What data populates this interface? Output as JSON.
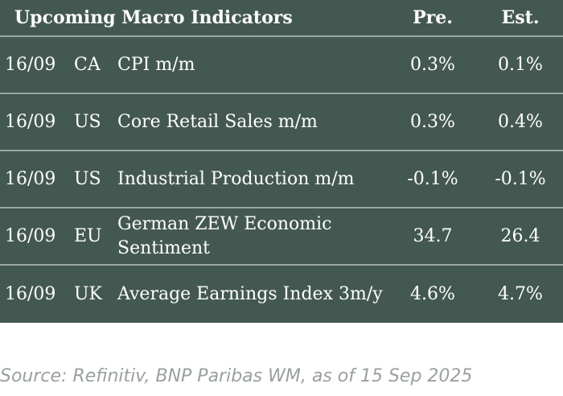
{
  "header": {
    "title": "Upcoming Macro Indicators",
    "col_pre": "Pre.",
    "col_est": "Est."
  },
  "rows": [
    {
      "date": "16/09",
      "country": "CA",
      "indicator": "CPI m/m",
      "pre": "0.3%",
      "est": "0.1%"
    },
    {
      "date": "16/09",
      "country": "US",
      "indicator": "Core Retail Sales m/m",
      "pre": "0.3%",
      "est": "0.4%"
    },
    {
      "date": "16/09",
      "country": "US",
      "indicator": "Industrial Production m/m",
      "pre": "-0.1%",
      "est": "-0.1%"
    },
    {
      "date": "16/09",
      "country": "EU",
      "indicator": "German ZEW Economic Sentiment",
      "pre": "34.7",
      "est": "26.4"
    },
    {
      "date": "16/09",
      "country": "UK",
      "indicator": "Average Earnings Index 3m/y",
      "pre": "4.6%",
      "est": "4.7%"
    }
  ],
  "source": "Source: Refinitiv, BNP Paribas WM, as of 15 Sep 2025",
  "colors": {
    "table_bg": "#445852",
    "divider": "#9aa7a2",
    "source_text": "#9aa0a0"
  }
}
